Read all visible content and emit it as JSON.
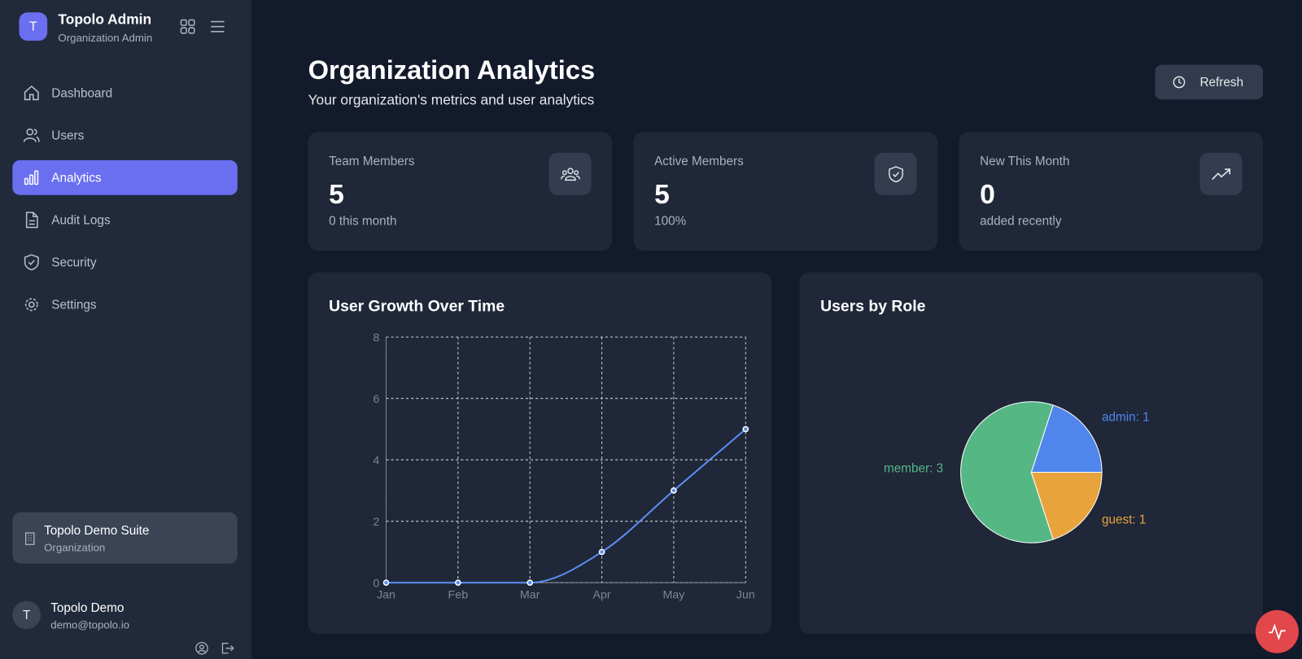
{
  "sidebar": {
    "brand": {
      "initial": "T",
      "title": "Topolo Admin",
      "subtitle": "Organization Admin"
    },
    "nav": [
      {
        "label": "Dashboard"
      },
      {
        "label": "Users"
      },
      {
        "label": "Analytics",
        "active": true
      },
      {
        "label": "Audit Logs"
      },
      {
        "label": "Security"
      },
      {
        "label": "Settings"
      }
    ],
    "org": {
      "name": "Topolo Demo Suite",
      "type": "Organization"
    },
    "user": {
      "initial": "T",
      "name": "Topolo Demo",
      "email": "demo@topolo.io"
    }
  },
  "header": {
    "title": "Organization Analytics",
    "subtitle": "Your organization's metrics and user analytics",
    "button": "Refresh"
  },
  "stats": [
    {
      "label": "Team Members",
      "value": 5,
      "note": "0 this month"
    },
    {
      "label": "Active Members",
      "value": 5,
      "note": "100%"
    },
    {
      "label": "New This Month",
      "value": 0,
      "note": "added recently"
    }
  ],
  "chart_data": [
    {
      "type": "line",
      "title": "User Growth Over Time",
      "categories": [
        "Jan",
        "Feb",
        "Mar",
        "Apr",
        "May",
        "Jun"
      ],
      "values": [
        0,
        0,
        0,
        1,
        3,
        5
      ],
      "color": "#5b8def",
      "ylim": [
        0,
        8
      ],
      "yticks": [
        0,
        2,
        4,
        6,
        8
      ],
      "grid": true
    },
    {
      "type": "pie",
      "title": "Users by Role",
      "values": [
        1,
        3,
        1
      ],
      "value_labels": [
        "admin: 1",
        "member: 3",
        "guest: 1"
      ],
      "colors": [
        "#5085ec",
        "#55b784",
        "#e8a33c"
      ]
    }
  ]
}
